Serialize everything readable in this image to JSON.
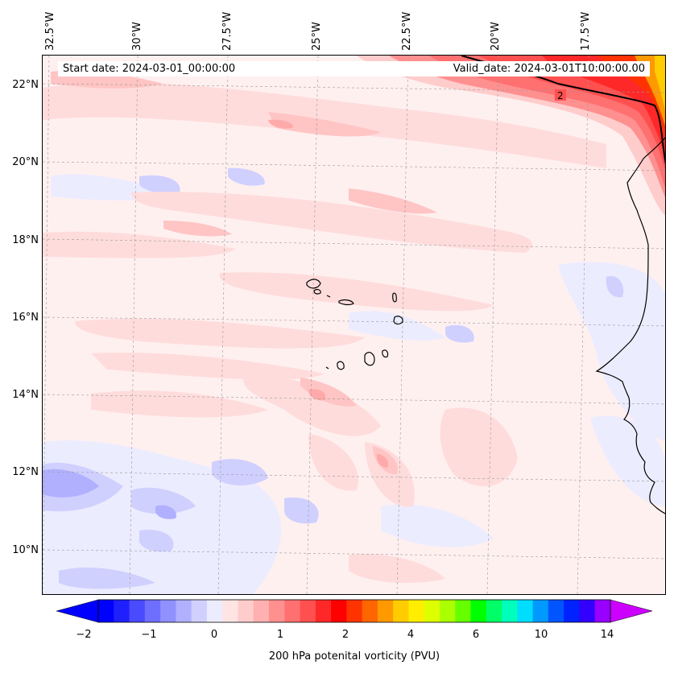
{
  "map": {
    "start_date": "Start date: 2024-03-01_00:00:00",
    "valid_date": "Valid_date: 2024-03-01T10:00:00.00",
    "contour_label": "2",
    "lon_labels": [
      "32.5°W",
      "30°W",
      "27.5°W",
      "25°W",
      "22.5°W",
      "20°W",
      "17.5°W"
    ],
    "lat_labels": [
      "22°N",
      "20°N",
      "18°N",
      "16°N",
      "14°N",
      "12°N",
      "10°N"
    ],
    "gridlines": "dashed grey",
    "coastlines": "black"
  },
  "colorbar": {
    "label": "200 hPa potenital vorticity (PVU)",
    "ticks": [
      "−2",
      "−1",
      "0",
      "1",
      "2",
      "4",
      "6",
      "10",
      "14"
    ],
    "extend": "both",
    "colors": [
      "#0000ff",
      "#2020ff",
      "#4a4aff",
      "#6e6eff",
      "#9090ff",
      "#b0b0ff",
      "#d0d0ff",
      "#ececff",
      "#ffe4e4",
      "#ffcccc",
      "#ffb0b0",
      "#ff9090",
      "#ff7070",
      "#ff5050",
      "#ff2828",
      "#ff0000",
      "#ff3300",
      "#ff6600",
      "#ff9900",
      "#ffcc00",
      "#ffee00",
      "#ddff00",
      "#aaff00",
      "#66ff00",
      "#00ff00",
      "#00ff66",
      "#00ffbb",
      "#00ddff",
      "#0099ff",
      "#0055ff",
      "#0022ff",
      "#3300ff",
      "#9900ff"
    ],
    "extend_low_color": "#0000ff",
    "extend_high_color": "#cc00ff"
  }
}
